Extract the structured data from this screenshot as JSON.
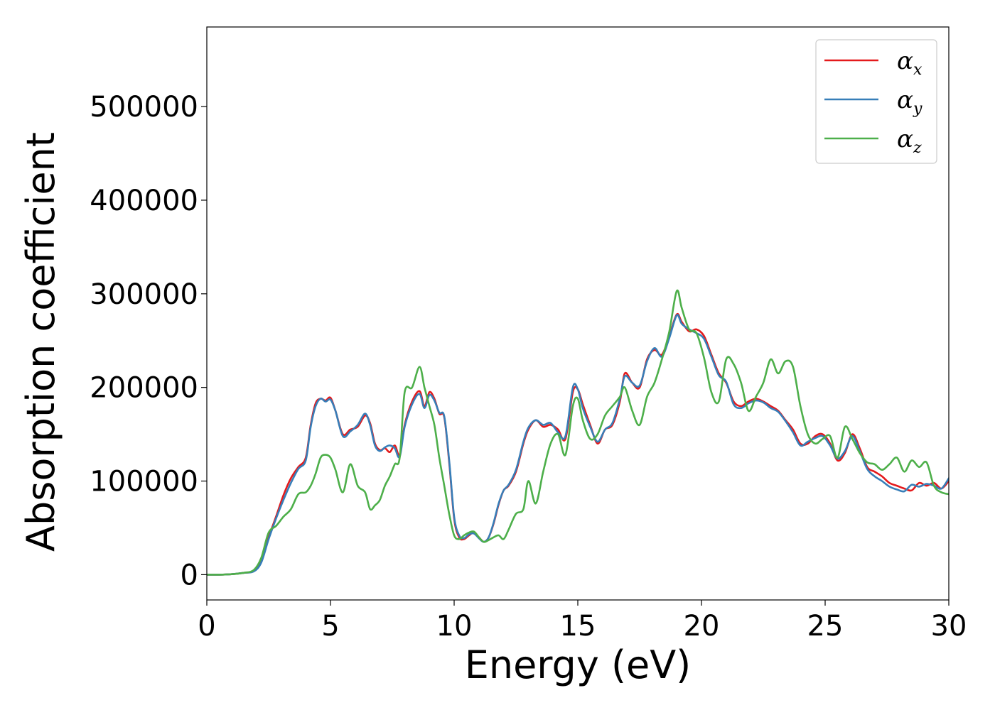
{
  "chart_data": {
    "type": "line",
    "title": "",
    "xlabel": "Energy (eV)",
    "ylabel": "Absorption coefficient",
    "xlim": [
      0,
      30
    ],
    "ylim": [
      -27000,
      585000
    ],
    "xticks": [
      0,
      5,
      10,
      15,
      20,
      25,
      30
    ],
    "xtick_labels": [
      "0",
      "5",
      "10",
      "15",
      "20",
      "25",
      "30"
    ],
    "yticks": [
      0,
      100000,
      200000,
      300000,
      400000,
      500000
    ],
    "ytick_labels": [
      "0",
      "100000",
      "200000",
      "300000",
      "400000",
      "500000"
    ],
    "grid": false,
    "legend_position": "top-right",
    "series": [
      {
        "name": "α_x",
        "symbol": "α",
        "subscript": "x",
        "color": "#e41a1c",
        "x": [
          0,
          0.5,
          1,
          1.5,
          1.9,
          2.2,
          2.5,
          2.8,
          3.1,
          3.4,
          3.7,
          4.0,
          4.2,
          4.4,
          4.6,
          4.8,
          5.0,
          5.2,
          5.5,
          5.8,
          6.1,
          6.4,
          6.6,
          6.8,
          7.0,
          7.2,
          7.4,
          7.6,
          7.8,
          8.0,
          8.3,
          8.6,
          8.8,
          9.0,
          9.2,
          9.4,
          9.6,
          9.8,
          10.0,
          10.2,
          10.4,
          10.6,
          10.8,
          11.0,
          11.2,
          11.4,
          11.6,
          11.8,
          12.0,
          12.2,
          12.5,
          12.8,
          13.0,
          13.3,
          13.6,
          13.9,
          14.2,
          14.5,
          14.8,
          15.0,
          15.2,
          15.5,
          15.8,
          16.1,
          16.4,
          16.7,
          16.9,
          17.2,
          17.5,
          17.8,
          18.1,
          18.4,
          18.7,
          19.0,
          19.2,
          19.5,
          19.8,
          20.1,
          20.4,
          20.7,
          21.0,
          21.3,
          21.6,
          21.9,
          22.2,
          22.5,
          22.8,
          23.1,
          23.4,
          23.7,
          24.0,
          24.3,
          24.6,
          24.9,
          25.2,
          25.5,
          25.8,
          26.1,
          26.4,
          26.7,
          27.0,
          27.3,
          27.6,
          27.9,
          28.2,
          28.5,
          28.8,
          29.1,
          29.4,
          29.7,
          30.0
        ],
        "y": [
          0,
          0,
          500,
          2000,
          4000,
          15000,
          40000,
          62000,
          85000,
          103000,
          115000,
          125000,
          160000,
          183000,
          188000,
          186000,
          189000,
          175000,
          150000,
          155000,
          158000,
          170000,
          162000,
          140000,
          133000,
          135000,
          131000,
          138000,
          128000,
          160000,
          185000,
          196000,
          180000,
          195000,
          188000,
          172000,
          168000,
          120000,
          60000,
          40000,
          38000,
          42000,
          45000,
          40000,
          35000,
          40000,
          55000,
          75000,
          90000,
          95000,
          110000,
          140000,
          155000,
          165000,
          158000,
          160000,
          155000,
          145000,
          195000,
          198000,
          182000,
          160000,
          140000,
          155000,
          160000,
          185000,
          215000,
          205000,
          200000,
          230000,
          240000,
          235000,
          255000,
          278000,
          270000,
          260000,
          262000,
          255000,
          235000,
          215000,
          205000,
          185000,
          180000,
          185000,
          188000,
          185000,
          180000,
          175000,
          165000,
          155000,
          140000,
          140000,
          148000,
          150000,
          140000,
          122000,
          130000,
          150000,
          135000,
          115000,
          110000,
          105000,
          98000,
          95000,
          92000,
          90000,
          98000,
          95000,
          98000,
          92000,
          100000
        ]
      },
      {
        "name": "α_y",
        "symbol": "α",
        "subscript": "y",
        "color": "#377eb8",
        "x": [
          0,
          0.5,
          1,
          1.5,
          1.9,
          2.2,
          2.5,
          2.8,
          3.1,
          3.4,
          3.7,
          4.0,
          4.2,
          4.4,
          4.6,
          4.8,
          5.0,
          5.2,
          5.5,
          5.8,
          6.1,
          6.4,
          6.6,
          6.8,
          7.0,
          7.2,
          7.4,
          7.6,
          7.8,
          8.0,
          8.3,
          8.6,
          8.8,
          9.0,
          9.2,
          9.4,
          9.6,
          9.8,
          10.0,
          10.2,
          10.4,
          10.6,
          10.8,
          11.0,
          11.2,
          11.4,
          11.6,
          11.8,
          12.0,
          12.2,
          12.5,
          12.8,
          13.0,
          13.3,
          13.6,
          13.9,
          14.2,
          14.5,
          14.8,
          15.0,
          15.2,
          15.5,
          15.8,
          16.1,
          16.4,
          16.7,
          16.9,
          17.2,
          17.5,
          17.8,
          18.1,
          18.4,
          18.7,
          19.0,
          19.2,
          19.5,
          19.8,
          20.1,
          20.4,
          20.7,
          21.0,
          21.3,
          21.6,
          21.9,
          22.2,
          22.5,
          22.8,
          23.1,
          23.4,
          23.7,
          24.0,
          24.3,
          24.6,
          24.9,
          25.2,
          25.5,
          25.8,
          26.1,
          26.4,
          26.7,
          27.0,
          27.3,
          27.6,
          27.9,
          28.2,
          28.5,
          28.8,
          29.1,
          29.4,
          29.7,
          30.0
        ],
        "y": [
          0,
          0,
          500,
          2000,
          3500,
          13000,
          38000,
          60000,
          80000,
          98000,
          113000,
          122000,
          158000,
          180000,
          188000,
          185000,
          187000,
          175000,
          148000,
          153000,
          160000,
          172000,
          160000,
          138000,
          132000,
          136000,
          138000,
          135000,
          126000,
          158000,
          182000,
          193000,
          178000,
          192000,
          186000,
          173000,
          169000,
          122000,
          62000,
          42000,
          39000,
          43000,
          44000,
          39000,
          35000,
          40000,
          56000,
          76000,
          90000,
          96000,
          112000,
          142000,
          157000,
          165000,
          160000,
          162000,
          152000,
          148000,
          200000,
          198000,
          178000,
          158000,
          142000,
          155000,
          162000,
          188000,
          212000,
          205000,
          202000,
          228000,
          242000,
          233000,
          253000,
          277000,
          268000,
          262000,
          258000,
          252000,
          233000,
          213000,
          206000,
          182000,
          178000,
          183000,
          186000,
          184000,
          178000,
          174000,
          164000,
          152000,
          138000,
          142000,
          146000,
          148000,
          138000,
          124000,
          132000,
          148000,
          132000,
          113000,
          105000,
          100000,
          94000,
          91000,
          89000,
          96000,
          94000,
          97000,
          95000,
          92000,
          103000
        ]
      },
      {
        "name": "α_z",
        "symbol": "α",
        "subscript": "z",
        "color": "#4daf4a",
        "x": [
          0,
          0.5,
          1,
          1.5,
          1.9,
          2.2,
          2.5,
          2.8,
          3.1,
          3.4,
          3.7,
          4.0,
          4.2,
          4.4,
          4.6,
          4.8,
          5.0,
          5.2,
          5.5,
          5.8,
          6.1,
          6.4,
          6.6,
          6.8,
          7.0,
          7.2,
          7.4,
          7.6,
          7.8,
          8.0,
          8.3,
          8.6,
          8.8,
          9.0,
          9.2,
          9.4,
          9.6,
          9.8,
          10.0,
          10.2,
          10.4,
          10.6,
          10.8,
          11.0,
          11.2,
          11.4,
          11.6,
          11.8,
          12.0,
          12.2,
          12.5,
          12.8,
          13.0,
          13.3,
          13.6,
          13.9,
          14.2,
          14.5,
          14.8,
          15.0,
          15.2,
          15.5,
          15.8,
          16.1,
          16.4,
          16.7,
          16.9,
          17.2,
          17.5,
          17.8,
          18.1,
          18.4,
          18.7,
          19.0,
          19.2,
          19.5,
          19.8,
          20.1,
          20.4,
          20.7,
          21.0,
          21.3,
          21.6,
          21.9,
          22.2,
          22.5,
          22.8,
          23.1,
          23.4,
          23.7,
          24.0,
          24.3,
          24.6,
          24.9,
          25.2,
          25.5,
          25.8,
          26.1,
          26.4,
          26.7,
          27.0,
          27.3,
          27.6,
          27.9,
          28.2,
          28.5,
          28.8,
          29.1,
          29.4,
          29.7,
          30.0
        ],
        "y": [
          0,
          0,
          500,
          2000,
          5000,
          18000,
          45000,
          52000,
          62000,
          70000,
          86000,
          88000,
          95000,
          108000,
          125000,
          128000,
          125000,
          112000,
          88000,
          118000,
          95000,
          88000,
          70000,
          74000,
          80000,
          95000,
          105000,
          118000,
          125000,
          195000,
          200000,
          222000,
          200000,
          180000,
          160000,
          125000,
          95000,
          65000,
          42000,
          38000,
          42000,
          45000,
          46000,
          40000,
          35000,
          37000,
          40000,
          42000,
          38000,
          48000,
          65000,
          70000,
          100000,
          76000,
          110000,
          140000,
          150000,
          128000,
          180000,
          188000,
          165000,
          145000,
          150000,
          170000,
          180000,
          190000,
          200000,
          175000,
          160000,
          190000,
          205000,
          230000,
          260000,
          303000,
          285000,
          262000,
          258000,
          232000,
          195000,
          185000,
          230000,
          225000,
          205000,
          175000,
          190000,
          205000,
          230000,
          215000,
          228000,
          222000,
          180000,
          150000,
          140000,
          145000,
          148000,
          125000,
          158000,
          145000,
          130000,
          120000,
          118000,
          112000,
          118000,
          125000,
          110000,
          122000,
          115000,
          120000,
          95000,
          88000,
          86000
        ]
      }
    ]
  }
}
